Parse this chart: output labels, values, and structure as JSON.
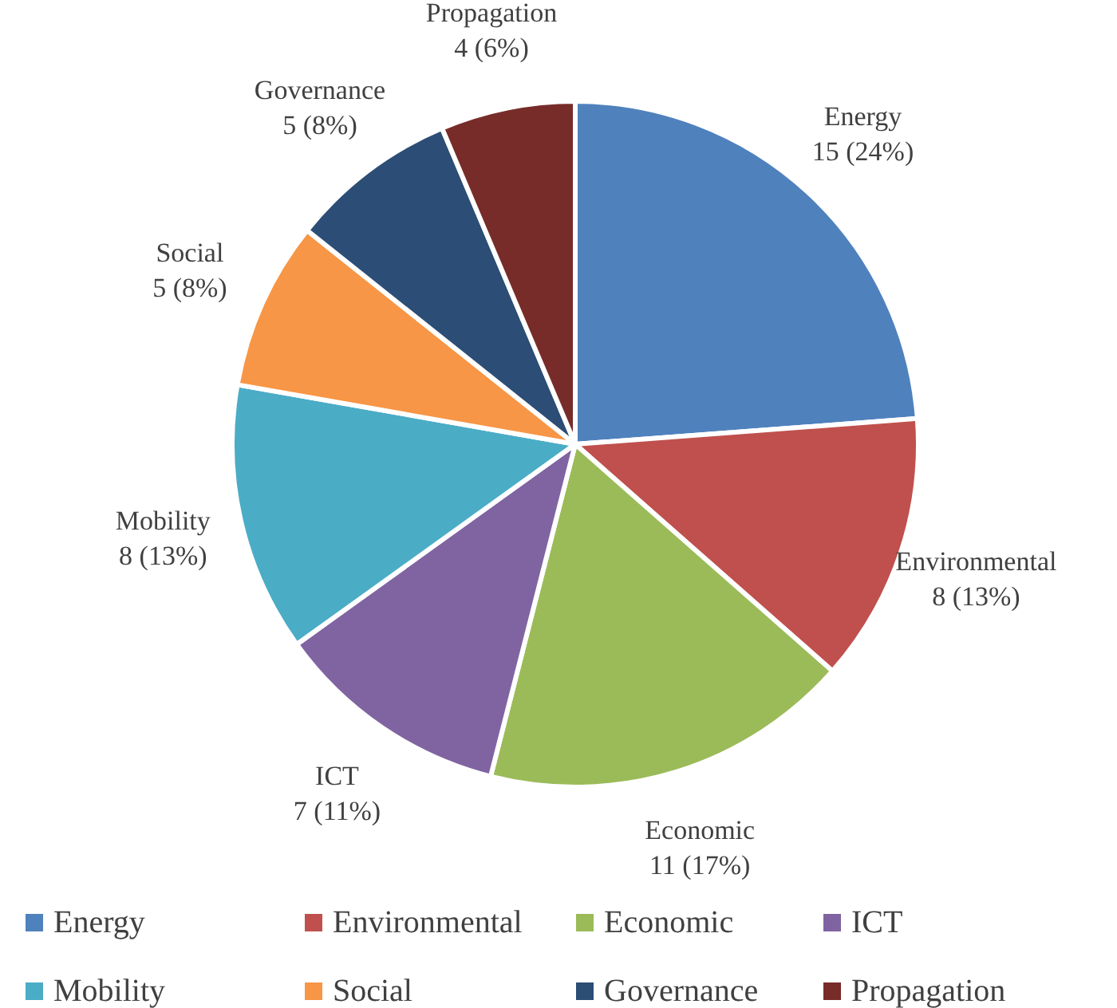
{
  "chart_data": {
    "type": "pie",
    "categories": [
      "Energy",
      "Environmental",
      "Economic",
      "ICT",
      "Mobility",
      "Social",
      "Governance",
      "Propagation"
    ],
    "values": [
      15,
      8,
      11,
      7,
      8,
      5,
      5,
      4
    ],
    "colors": [
      "#4f81bd",
      "#c0504d",
      "#9bbb59",
      "#8064a2",
      "#4bacc6",
      "#f79646",
      "#2c4d75",
      "#772c2a"
    ],
    "value_labels": [
      "15 (24%)",
      "8 (13%)",
      "11 (17%)",
      "7 (11%)",
      "8 (13%)",
      "5 (8%)",
      "5 (8%)",
      "4 (6%)"
    ],
    "legend": "bottom"
  }
}
